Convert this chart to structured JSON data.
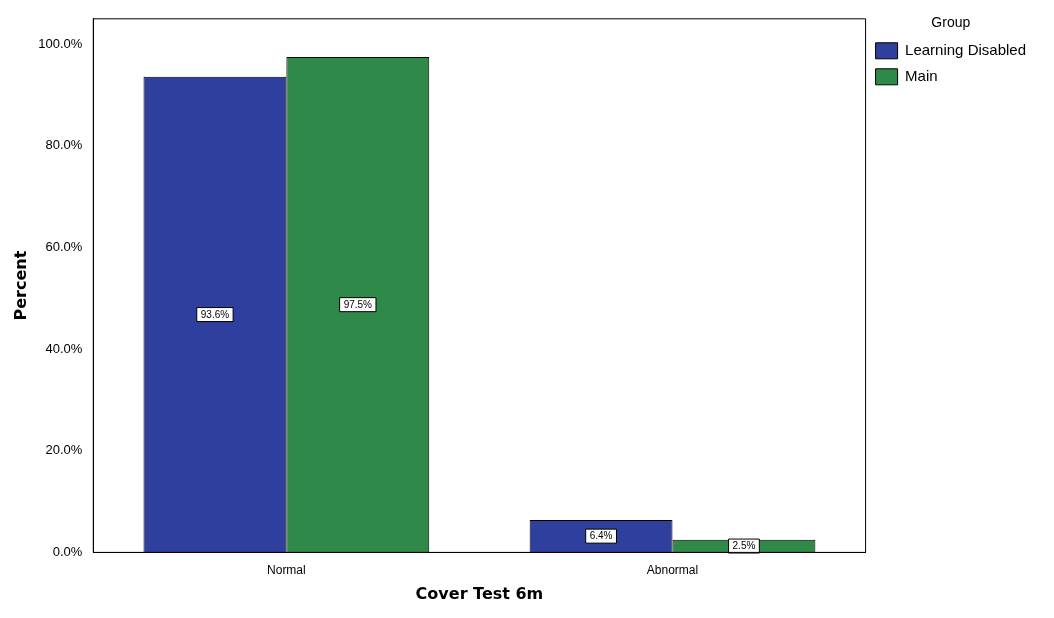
{
  "chart_data": {
    "type": "bar",
    "xlabel": "Cover Test 6m",
    "ylabel": "Percent",
    "legend_title": "Group",
    "categories": [
      "Normal",
      "Abnormal"
    ],
    "series": [
      {
        "name": "Learning Disabled",
        "color": "#2e3f9e",
        "values": [
          93.6,
          6.4
        ],
        "value_labels": [
          "93.6%",
          "6.4%"
        ]
      },
      {
        "name": "Main",
        "color": "#2f8a4a",
        "values": [
          97.5,
          2.5
        ],
        "value_labels": [
          "97.5%",
          "2.5%"
        ]
      }
    ],
    "ylim": [
      0,
      105
    ],
    "yticks": [
      {
        "value": 0,
        "label": "0.0%"
      },
      {
        "value": 20,
        "label": "20.0%"
      },
      {
        "value": 40,
        "label": "40.0%"
      },
      {
        "value": 60,
        "label": "60.0%"
      },
      {
        "value": 80,
        "label": "80.0%"
      },
      {
        "value": 100,
        "label": "100.0%"
      }
    ],
    "grid": false,
    "legend": "top right"
  }
}
